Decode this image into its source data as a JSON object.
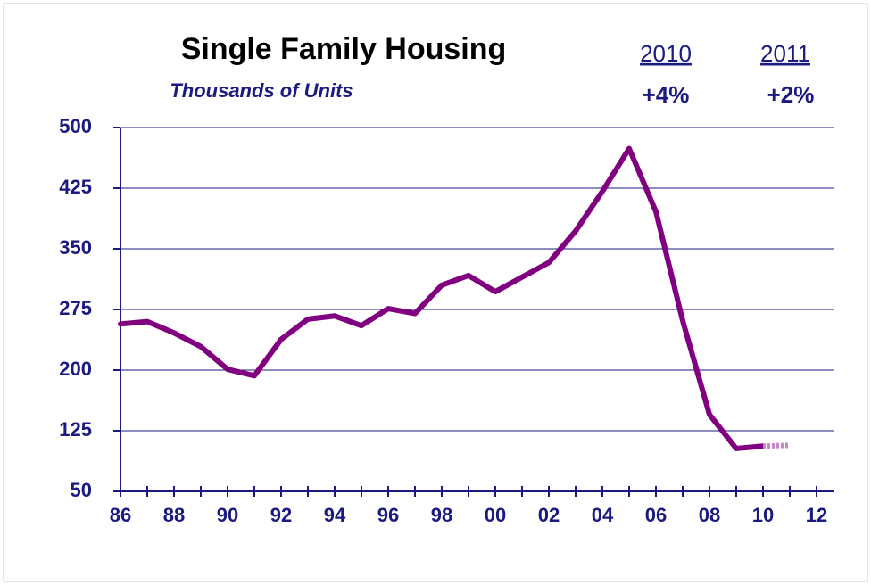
{
  "chart_data": {
    "type": "line",
    "title": "Single Family Housing",
    "subtitle": "Thousands of Units",
    "annotations": [
      {
        "year": "2010",
        "change": "+4%"
      },
      {
        "year": "2011",
        "change": "+2%"
      }
    ],
    "categories": [
      "86",
      null,
      "88",
      null,
      "90",
      null,
      "92",
      null,
      "94",
      null,
      "96",
      null,
      "98",
      null,
      "00",
      null,
      "02",
      null,
      "04",
      null,
      "06",
      null,
      "08",
      null,
      "10",
      null,
      "12"
    ],
    "series": [
      {
        "color": "#800080",
        "style": "solid",
        "values": [
          257,
          260,
          246,
          229,
          201,
          193,
          238,
          263,
          267,
          255,
          276,
          270,
          305,
          317,
          297,
          315,
          333,
          372,
          421,
          474,
          396,
          261,
          145,
          103,
          106,
          null,
          null
        ]
      },
      {
        "color": "#c58ac5",
        "style": "dashed",
        "values": [
          null,
          null,
          null,
          null,
          null,
          null,
          null,
          null,
          null,
          null,
          null,
          null,
          null,
          null,
          null,
          null,
          null,
          null,
          null,
          null,
          null,
          null,
          null,
          null,
          106,
          107,
          null
        ]
      }
    ],
    "ylim": [
      50,
      500
    ],
    "yticks": [
      50,
      125,
      200,
      275,
      350,
      425,
      500
    ],
    "grid": true
  }
}
